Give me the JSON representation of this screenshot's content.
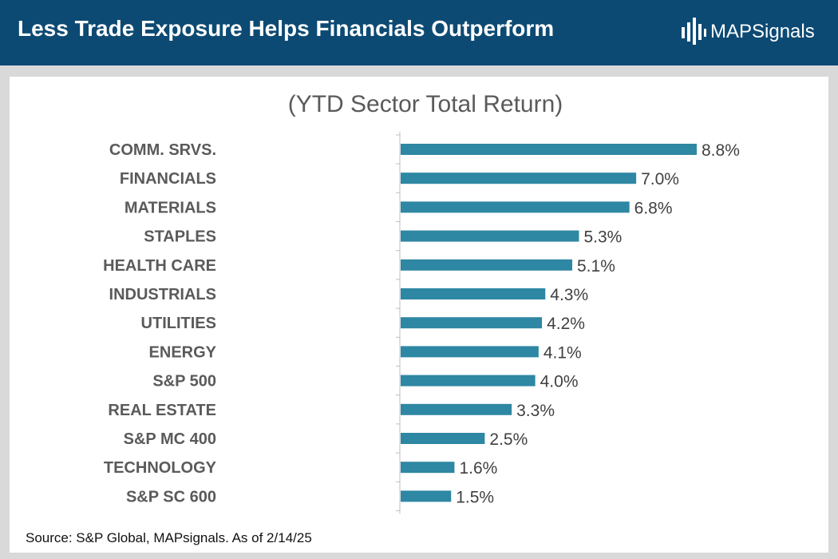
{
  "header": {
    "title": "Less Trade Exposure Helps Financials Outperform",
    "logo_text": "MAPSignals"
  },
  "colors": {
    "header_bg": "#0d4a73",
    "bar": "#2e87a3",
    "label": "#5a5a5a",
    "value": "#404040"
  },
  "chart_data": {
    "type": "bar",
    "orientation": "horizontal",
    "title": "(YTD Sector Total Return)",
    "categories": [
      "COMM. SRVS.",
      "FINANCIALS",
      "MATERIALS",
      "STAPLES",
      "HEALTH CARE",
      "INDUSTRIALS",
      "UTILITIES",
      "ENERGY",
      "S&P 500",
      "REAL ESTATE",
      "S&P MC 400",
      "TECHNOLOGY",
      "S&P SC 600"
    ],
    "values": [
      8.8,
      7.0,
      6.8,
      5.3,
      5.1,
      4.3,
      4.2,
      4.1,
      4.0,
      3.3,
      2.5,
      1.6,
      1.5
    ],
    "value_labels": [
      "8.8%",
      "7.0%",
      "6.8%",
      "5.3%",
      "5.1%",
      "4.3%",
      "4.2%",
      "4.1%",
      "4.0%",
      "3.3%",
      "2.5%",
      "1.6%",
      "1.5%"
    ],
    "unit": "%",
    "xlim": [
      0,
      8.8
    ],
    "grid": false,
    "legend": "none"
  },
  "footer": {
    "source": "Source: S&P Global, MAPsignals. As of  2/14/25"
  }
}
